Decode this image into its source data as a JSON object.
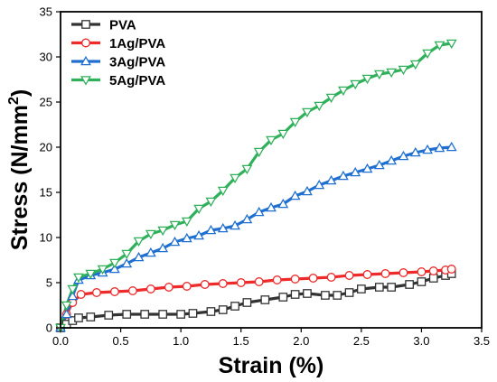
{
  "chart_data": {
    "type": "line",
    "xlabel": "Strain (%)",
    "ylabel": "Stress (N/mm",
    "ylabel_sup": "2",
    "ylabel_close": ")",
    "xlim": [
      0,
      3.5
    ],
    "ylim": [
      0,
      35
    ],
    "xticks": [
      "0.0",
      "0.5",
      "1.0",
      "1.5",
      "2.0",
      "2.5",
      "3.0",
      "3.5"
    ],
    "yticks": [
      "0",
      "5",
      "10",
      "15",
      "20",
      "25",
      "30",
      "35"
    ],
    "grid": false,
    "legend_position": "top-left",
    "series": [
      {
        "name": "PVA",
        "color": "#333333",
        "marker": "square",
        "x": [
          0,
          0.05,
          0.1,
          0.15,
          0.25,
          0.4,
          0.55,
          0.7,
          0.85,
          1.0,
          1.1,
          1.25,
          1.35,
          1.45,
          1.55,
          1.7,
          1.85,
          1.95,
          2.05,
          2.2,
          2.3,
          2.4,
          2.5,
          2.65,
          2.75,
          2.9,
          3.0,
          3.1,
          3.2,
          3.25
        ],
        "y": [
          0,
          0.4,
          0.8,
          1.1,
          1.2,
          1.4,
          1.5,
          1.5,
          1.5,
          1.5,
          1.6,
          1.8,
          2.0,
          2.4,
          2.8,
          3.1,
          3.4,
          3.7,
          3.8,
          3.6,
          3.6,
          3.9,
          4.3,
          4.5,
          4.5,
          4.8,
          5.1,
          5.5,
          5.8,
          6.0
        ]
      },
      {
        "name": "1Ag/PVA",
        "color": "#ee2a2a",
        "marker": "circle",
        "x": [
          0,
          0.05,
          0.1,
          0.17,
          0.3,
          0.45,
          0.6,
          0.75,
          0.9,
          1.05,
          1.2,
          1.35,
          1.5,
          1.65,
          1.8,
          1.95,
          2.1,
          2.25,
          2.4,
          2.55,
          2.7,
          2.85,
          3.0,
          3.1,
          3.2,
          3.25
        ],
        "y": [
          0,
          1.5,
          2.8,
          3.7,
          3.9,
          4.0,
          4.1,
          4.3,
          4.5,
          4.6,
          4.8,
          4.9,
          5.0,
          5.1,
          5.3,
          5.4,
          5.5,
          5.6,
          5.8,
          5.9,
          6.0,
          6.1,
          6.2,
          6.3,
          6.4,
          6.5
        ]
      },
      {
        "name": "3Ag/PVA",
        "color": "#1f6fd0",
        "marker": "triangle-up",
        "x": [
          0,
          0.05,
          0.1,
          0.15,
          0.25,
          0.35,
          0.45,
          0.55,
          0.65,
          0.75,
          0.85,
          0.95,
          1.05,
          1.15,
          1.25,
          1.35,
          1.45,
          1.55,
          1.65,
          1.75,
          1.85,
          1.95,
          2.05,
          2.15,
          2.25,
          2.35,
          2.45,
          2.55,
          2.65,
          2.75,
          2.85,
          2.95,
          3.05,
          3.15,
          3.25
        ],
        "y": [
          0,
          1.5,
          3.5,
          5.3,
          5.8,
          6.1,
          6.5,
          7.1,
          7.8,
          8.3,
          8.8,
          9.5,
          9.9,
          10.2,
          10.8,
          11.0,
          11.3,
          12.0,
          12.8,
          13.3,
          13.7,
          14.6,
          15.1,
          15.8,
          16.3,
          16.8,
          17.2,
          17.6,
          18.0,
          18.5,
          19.0,
          19.4,
          19.7,
          19.9,
          20.0
        ]
      },
      {
        "name": "5Ag/PVA",
        "color": "#30b05a",
        "marker": "triangle-down",
        "x": [
          0,
          0.05,
          0.1,
          0.15,
          0.25,
          0.35,
          0.45,
          0.55,
          0.65,
          0.75,
          0.85,
          0.95,
          1.05,
          1.15,
          1.25,
          1.35,
          1.45,
          1.55,
          1.65,
          1.75,
          1.85,
          1.95,
          2.05,
          2.15,
          2.25,
          2.35,
          2.45,
          2.55,
          2.65,
          2.75,
          2.85,
          2.95,
          3.05,
          3.15,
          3.25
        ],
        "y": [
          0,
          2.5,
          4.3,
          5.6,
          6.0,
          6.5,
          7.2,
          8.2,
          9.6,
          10.4,
          10.8,
          11.4,
          11.8,
          13.2,
          14.0,
          15.2,
          16.6,
          17.6,
          19.5,
          20.8,
          21.5,
          22.8,
          23.9,
          24.6,
          25.5,
          26.3,
          27.0,
          27.6,
          28.1,
          28.3,
          28.6,
          29.2,
          30.4,
          31.3,
          31.5
        ]
      }
    ]
  }
}
